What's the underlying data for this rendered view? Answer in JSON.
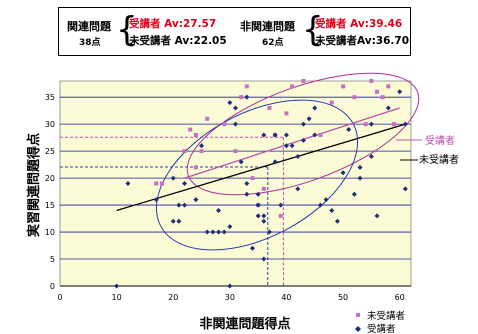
{
  "summary": {
    "related": {
      "name": "関連問題",
      "count": "38点",
      "trained_label": "受講者",
      "trained_av": "Av:27.57",
      "untrained_label": "未受講者",
      "untrained_av": "Av:22.05"
    },
    "unrelated": {
      "name": "非関連問題",
      "count": "62点",
      "trained_label": "受講者",
      "trained_av": "Av:39.46",
      "untrained_label": "未受講者",
      "untrained_av": "Av:36.70"
    }
  },
  "colors": {
    "trained": "#c86fbf",
    "untrained": "#1f2f7a",
    "trained_line": "#c050b0",
    "untrained_line": "#000000",
    "trained_ellipse": "#b02c9a",
    "untrained_ellipse": "#2a3fa8",
    "plot_bg": "#fbfbd6",
    "grid": "#1a1aa8",
    "red_text": "#e0001b"
  },
  "chart_data": {
    "type": "scatter",
    "xlabel": "非関連問題得点",
    "ylabel": "実習関連問題得点",
    "xlim": [
      0,
      62
    ],
    "ylim": [
      0,
      38
    ],
    "xticks": [
      0,
      10,
      20,
      30,
      40,
      50,
      60
    ],
    "yticks": [
      0,
      5,
      10,
      15,
      20,
      25,
      30,
      35
    ],
    "grid": "horizontal",
    "legend_position": "bottom-right",
    "series": [
      {
        "name": "受講者",
        "marker": "square",
        "points": [
          [
            17,
            19
          ],
          [
            18,
            19
          ],
          [
            22,
            25
          ],
          [
            23,
            29
          ],
          [
            24,
            22
          ],
          [
            24,
            28
          ],
          [
            25,
            25
          ],
          [
            26,
            31
          ],
          [
            29,
            30
          ],
          [
            31,
            25
          ],
          [
            32,
            35
          ],
          [
            33,
            37
          ],
          [
            34,
            20
          ],
          [
            35,
            15
          ],
          [
            36,
            18
          ],
          [
            37,
            33
          ],
          [
            38,
            28
          ],
          [
            39,
            13
          ],
          [
            40,
            32
          ],
          [
            41,
            37
          ],
          [
            43,
            38
          ],
          [
            46,
            28
          ],
          [
            48,
            34
          ],
          [
            50,
            37
          ],
          [
            52,
            35
          ],
          [
            54,
            30
          ],
          [
            55,
            38
          ],
          [
            56,
            36
          ],
          [
            57,
            35
          ],
          [
            58,
            37
          ],
          [
            59,
            30
          ]
        ],
        "avg_x": 39.46,
        "avg_y": 27.57,
        "trend": [
          [
            22,
            20
          ],
          [
            60,
            33
          ]
        ]
      },
      {
        "name": "未受講者",
        "marker": "diamond",
        "points": [
          [
            10,
            0
          ],
          [
            12,
            19
          ],
          [
            17,
            16
          ],
          [
            20,
            20
          ],
          [
            20,
            12
          ],
          [
            21,
            12
          ],
          [
            21,
            15
          ],
          [
            22,
            19
          ],
          [
            24,
            16
          ],
          [
            25,
            26
          ],
          [
            26,
            10
          ],
          [
            27,
            10
          ],
          [
            28,
            10
          ],
          [
            28,
            14
          ],
          [
            29,
            10
          ],
          [
            30,
            11
          ],
          [
            30,
            34
          ],
          [
            31,
            33
          ],
          [
            31,
            30
          ],
          [
            32,
            23
          ],
          [
            33,
            35
          ],
          [
            33,
            17
          ],
          [
            34,
            7
          ],
          [
            35,
            15
          ],
          [
            35,
            17
          ],
          [
            35,
            13
          ],
          [
            36,
            5
          ],
          [
            36,
            28
          ],
          [
            36,
            12
          ],
          [
            36,
            13
          ],
          [
            37,
            10
          ],
          [
            38,
            28
          ],
          [
            38,
            23
          ],
          [
            39,
            15
          ],
          [
            40,
            26
          ],
          [
            40,
            28
          ],
          [
            41,
            26
          ],
          [
            42,
            24
          ],
          [
            42,
            18
          ],
          [
            43,
            27
          ],
          [
            43,
            30
          ],
          [
            44,
            31
          ],
          [
            45,
            33
          ],
          [
            45,
            28
          ],
          [
            46,
            15
          ],
          [
            47,
            16
          ],
          [
            48,
            14
          ],
          [
            49,
            12
          ],
          [
            50,
            21
          ],
          [
            51,
            29
          ],
          [
            52,
            17
          ],
          [
            53,
            22
          ],
          [
            53,
            20
          ],
          [
            55,
            30
          ],
          [
            55,
            24
          ],
          [
            56,
            13
          ],
          [
            58,
            33
          ],
          [
            60,
            36
          ],
          [
            61,
            18
          ],
          [
            61,
            30
          ],
          [
            30,
            0
          ],
          [
            22,
            15
          ],
          [
            33,
            19
          ]
        ],
        "avg_x": 36.7,
        "avg_y": 22.05,
        "trend": [
          [
            10,
            14
          ],
          [
            61,
            30
          ]
        ]
      }
    ],
    "annotations": {
      "trained_line_label": "受講者",
      "untrained_line_label": "未受講者"
    }
  }
}
